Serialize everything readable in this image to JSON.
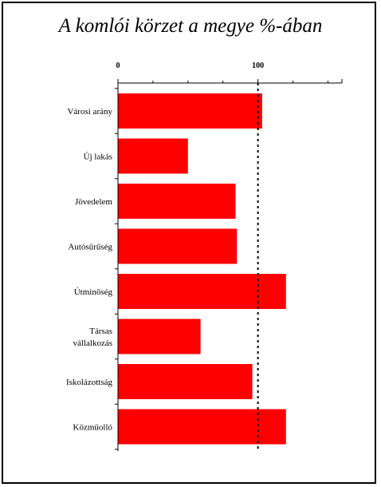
{
  "chart_data": {
    "type": "bar",
    "orientation": "horizontal",
    "title": "A komlói körzet a megye %-ában",
    "xlabel": "",
    "ylabel": "",
    "xlim": [
      0,
      160
    ],
    "ticks": [
      {
        "value": 0,
        "label": "0"
      },
      {
        "value": 100,
        "label": "100"
      }
    ],
    "minor_ticks": [
      25,
      50,
      75,
      125,
      150
    ],
    "reference_line": {
      "value": 100,
      "style": "dotted"
    },
    "grid": false,
    "legend": "none",
    "bar_color": "#ff0000",
    "categories": [
      [
        "Városi arány"
      ],
      [
        "Új lakás"
      ],
      [
        "Jövedelem"
      ],
      [
        "Autósűrűség"
      ],
      [
        "Útminőség"
      ],
      [
        "Társas",
        "vállalkozás"
      ],
      [
        "Iskolázottság"
      ],
      [
        "Közműolló"
      ]
    ],
    "values": [
      103,
      50,
      84,
      85,
      120,
      59,
      96,
      120
    ]
  }
}
